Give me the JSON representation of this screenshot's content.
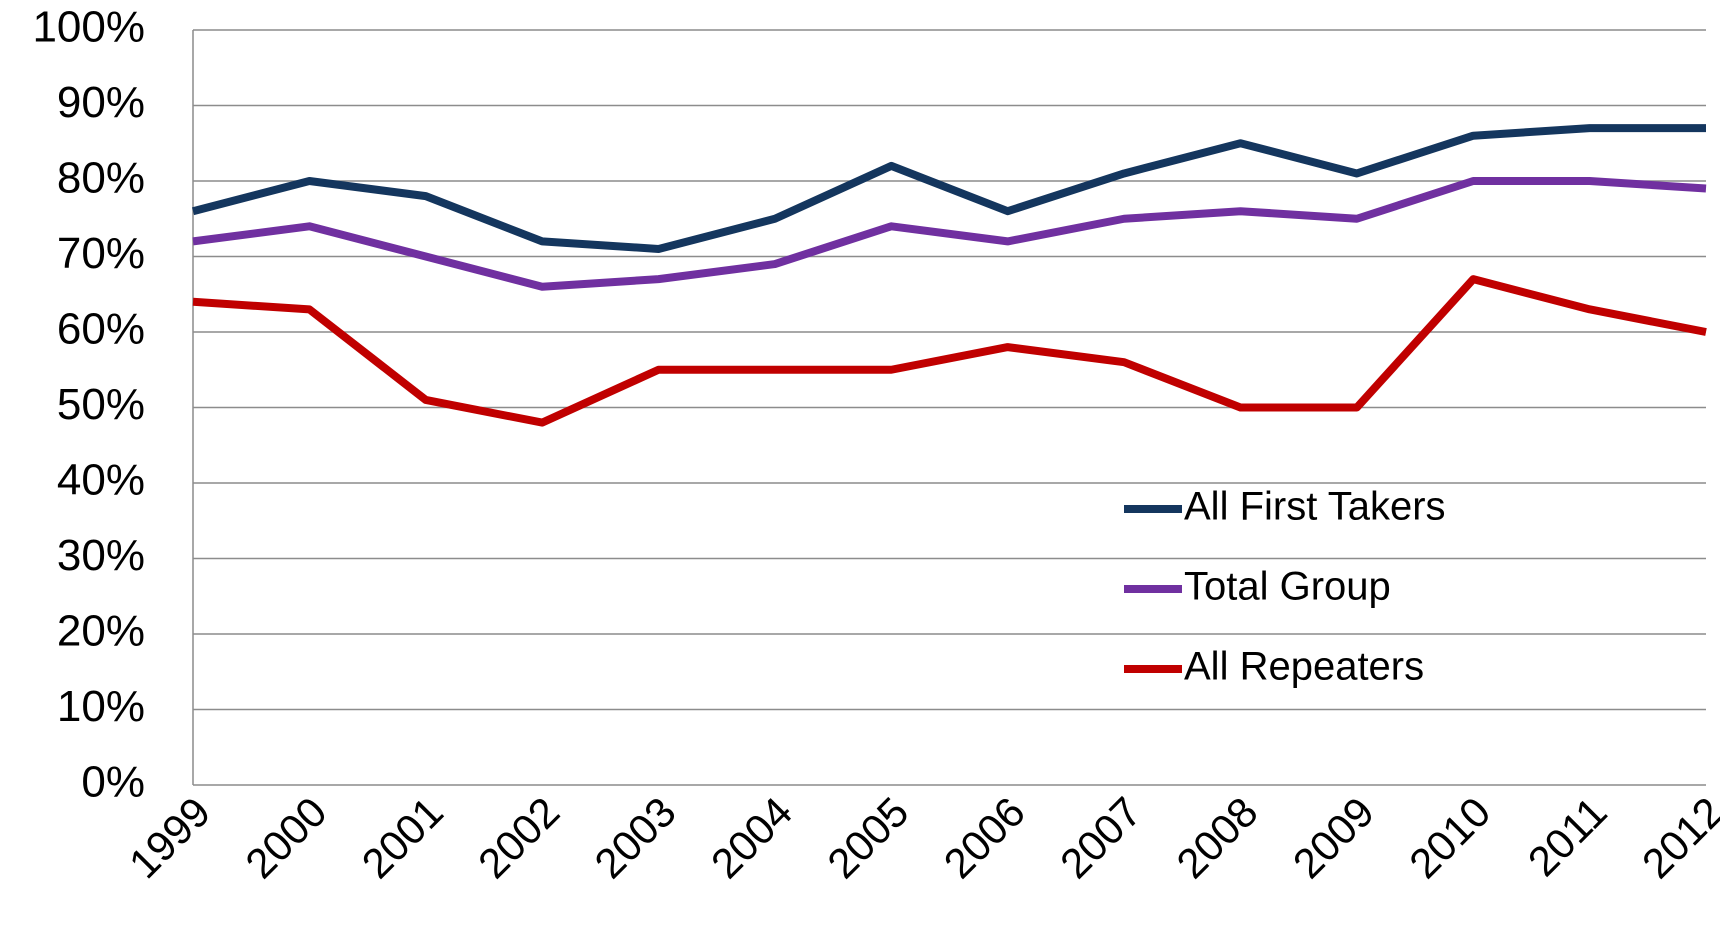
{
  "chart_data": {
    "type": "line",
    "categories": [
      "1999",
      "2000",
      "2001",
      "2002",
      "2003",
      "2004",
      "2005",
      "2006",
      "2007",
      "2008",
      "2009",
      "2010",
      "2011",
      "2012"
    ],
    "series": [
      {
        "name": "All First Takers",
        "color": "#14365e",
        "values": [
          76,
          80,
          78,
          72,
          71,
          75,
          82,
          76,
          81,
          85,
          81,
          86,
          87,
          87
        ]
      },
      {
        "name": "Total Group",
        "color": "#7030a0",
        "values": [
          72,
          74,
          70,
          66,
          67,
          69,
          74,
          72,
          75,
          76,
          75,
          80,
          80,
          79
        ]
      },
      {
        "name": "All Repeaters",
        "color": "#c00000",
        "values": [
          64,
          63,
          51,
          48,
          55,
          55,
          55,
          58,
          56,
          50,
          50,
          67,
          63,
          60
        ]
      }
    ],
    "ylim": [
      0,
      100
    ],
    "yticks": [
      {
        "value": 0,
        "label": "0%"
      },
      {
        "value": 10,
        "label": "10%"
      },
      {
        "value": 20,
        "label": "20%"
      },
      {
        "value": 30,
        "label": "30%"
      },
      {
        "value": 40,
        "label": "40%"
      },
      {
        "value": 50,
        "label": "50%"
      },
      {
        "value": 60,
        "label": "60%"
      },
      {
        "value": 70,
        "label": "70%"
      },
      {
        "value": 80,
        "label": "80%"
      },
      {
        "value": 90,
        "label": "90%"
      },
      {
        "value": 100,
        "label": "100%"
      }
    ],
    "grid": true,
    "legend": "right"
  }
}
